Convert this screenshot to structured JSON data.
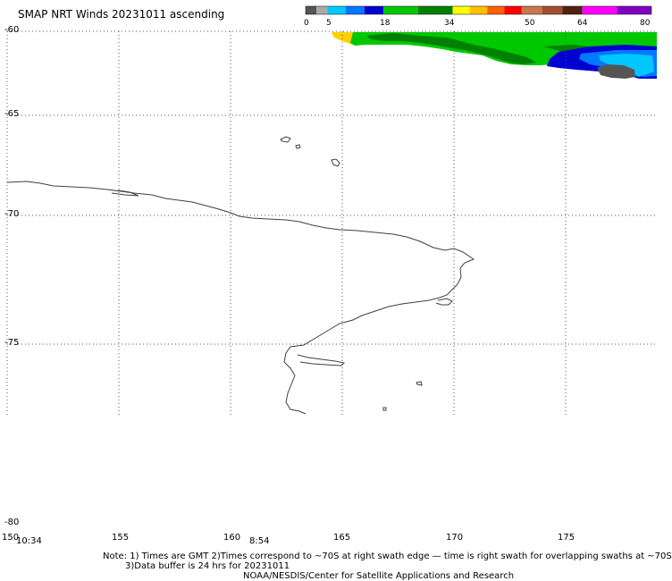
{
  "title": "SMAP NRT Winds 20231011 ascending",
  "colorbar": {
    "ticks": [
      "0",
      "5",
      "18",
      "34",
      "50",
      "64",
      "80"
    ],
    "segments": [
      {
        "from": 0,
        "to": 2.5,
        "color": "#555555"
      },
      {
        "from": 2.5,
        "to": 5,
        "color": "#aaaaaa"
      },
      {
        "from": 5,
        "to": 9.3,
        "color": "#00c8ff"
      },
      {
        "from": 9.3,
        "to": 13.6,
        "color": "#0078ff"
      },
      {
        "from": 13.6,
        "to": 18,
        "color": "#0000d0"
      },
      {
        "from": 18,
        "to": 26,
        "color": "#00c800"
      },
      {
        "from": 26,
        "to": 34,
        "color": "#008000"
      },
      {
        "from": 34,
        "to": 38,
        "color": "#ffff00"
      },
      {
        "from": 38,
        "to": 42,
        "color": "#ffc000"
      },
      {
        "from": 42,
        "to": 46,
        "color": "#ff6000"
      },
      {
        "from": 46,
        "to": 50,
        "color": "#ff0000"
      },
      {
        "from": 50,
        "to": 54.7,
        "color": "#c87850"
      },
      {
        "from": 54.7,
        "to": 59.4,
        "color": "#a05030"
      },
      {
        "from": 59.4,
        "to": 64,
        "color": "#502010"
      },
      {
        "from": 64,
        "to": 72,
        "color": "#ff00ff"
      },
      {
        "from": 72,
        "to": 80,
        "color": "#8000c0"
      }
    ]
  },
  "axes": {
    "lat_labels": [
      "-60",
      "-65",
      "-70",
      "-75",
      "-80"
    ],
    "lon_labels": [
      "150",
      "155",
      "160",
      "165",
      "170",
      "175"
    ]
  },
  "swath_times": [
    "10:34",
    "8:54"
  ],
  "notes": {
    "line1": "Note: 1) Times are GMT 2)Times correspond to ~70S at right swath edge — time is right swath for overlapping swaths at ~70S",
    "line2": "3)Data buffer is 24 hrs for 20231011",
    "line3": "NOAA/NESDIS/Center for Satellite Applications and Research"
  },
  "colors": {
    "coastline": "#404040",
    "grid": "#555555",
    "swath_green": "#00c800",
    "swath_dark_green": "#008000",
    "swath_yellow": "#ffd000",
    "swath_blue": "#0000d0",
    "swath_mid_blue": "#0078ff",
    "swath_cyan": "#00c8ff",
    "swath_gray": "#555555"
  }
}
